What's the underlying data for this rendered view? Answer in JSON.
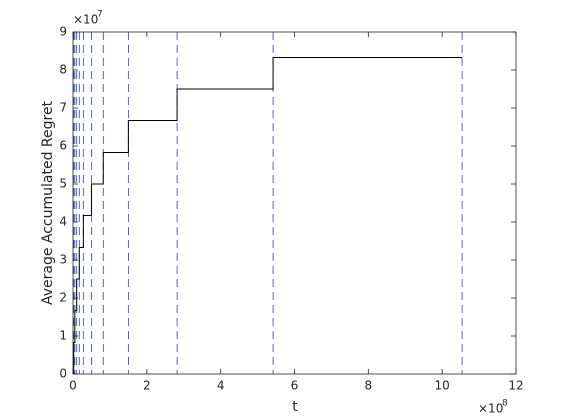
{
  "chart_data": {
    "type": "line",
    "xlabel": "t",
    "ylabel": "Average Accumulated Regret",
    "x_multiplier": {
      "base": "×10",
      "exponent": "8"
    },
    "y_multiplier": {
      "base": "×10",
      "exponent": "7"
    },
    "xlim": [
      0,
      12
    ],
    "ylim": [
      0,
      9
    ],
    "xticks": [
      0,
      2,
      4,
      6,
      8,
      10,
      12
    ],
    "yticks": [
      0,
      1,
      2,
      3,
      4,
      5,
      6,
      7,
      8,
      9
    ],
    "series": [
      {
        "color": "#000000",
        "x": [
          0,
          0.02,
          0.02,
          0.05,
          0.05,
          0.1,
          0.1,
          0.17,
          0.17,
          0.28,
          0.28,
          0.5,
          0.5,
          0.82,
          0.82,
          1.5,
          1.5,
          2.82,
          2.82,
          5.42,
          5.42,
          10.54
        ],
        "values": [
          0,
          0,
          0.83,
          0.83,
          1.67,
          1.67,
          2.5,
          2.5,
          3.33,
          3.33,
          4.17,
          4.17,
          5.0,
          5.0,
          5.83,
          5.83,
          6.67,
          6.67,
          7.5,
          7.5,
          8.33,
          8.33
        ]
      }
    ],
    "vlines": {
      "color": "#3040b0",
      "x": [
        0.02,
        0.05,
        0.1,
        0.17,
        0.28,
        0.5,
        0.82,
        1.5,
        2.82,
        5.42,
        10.54
      ]
    }
  }
}
